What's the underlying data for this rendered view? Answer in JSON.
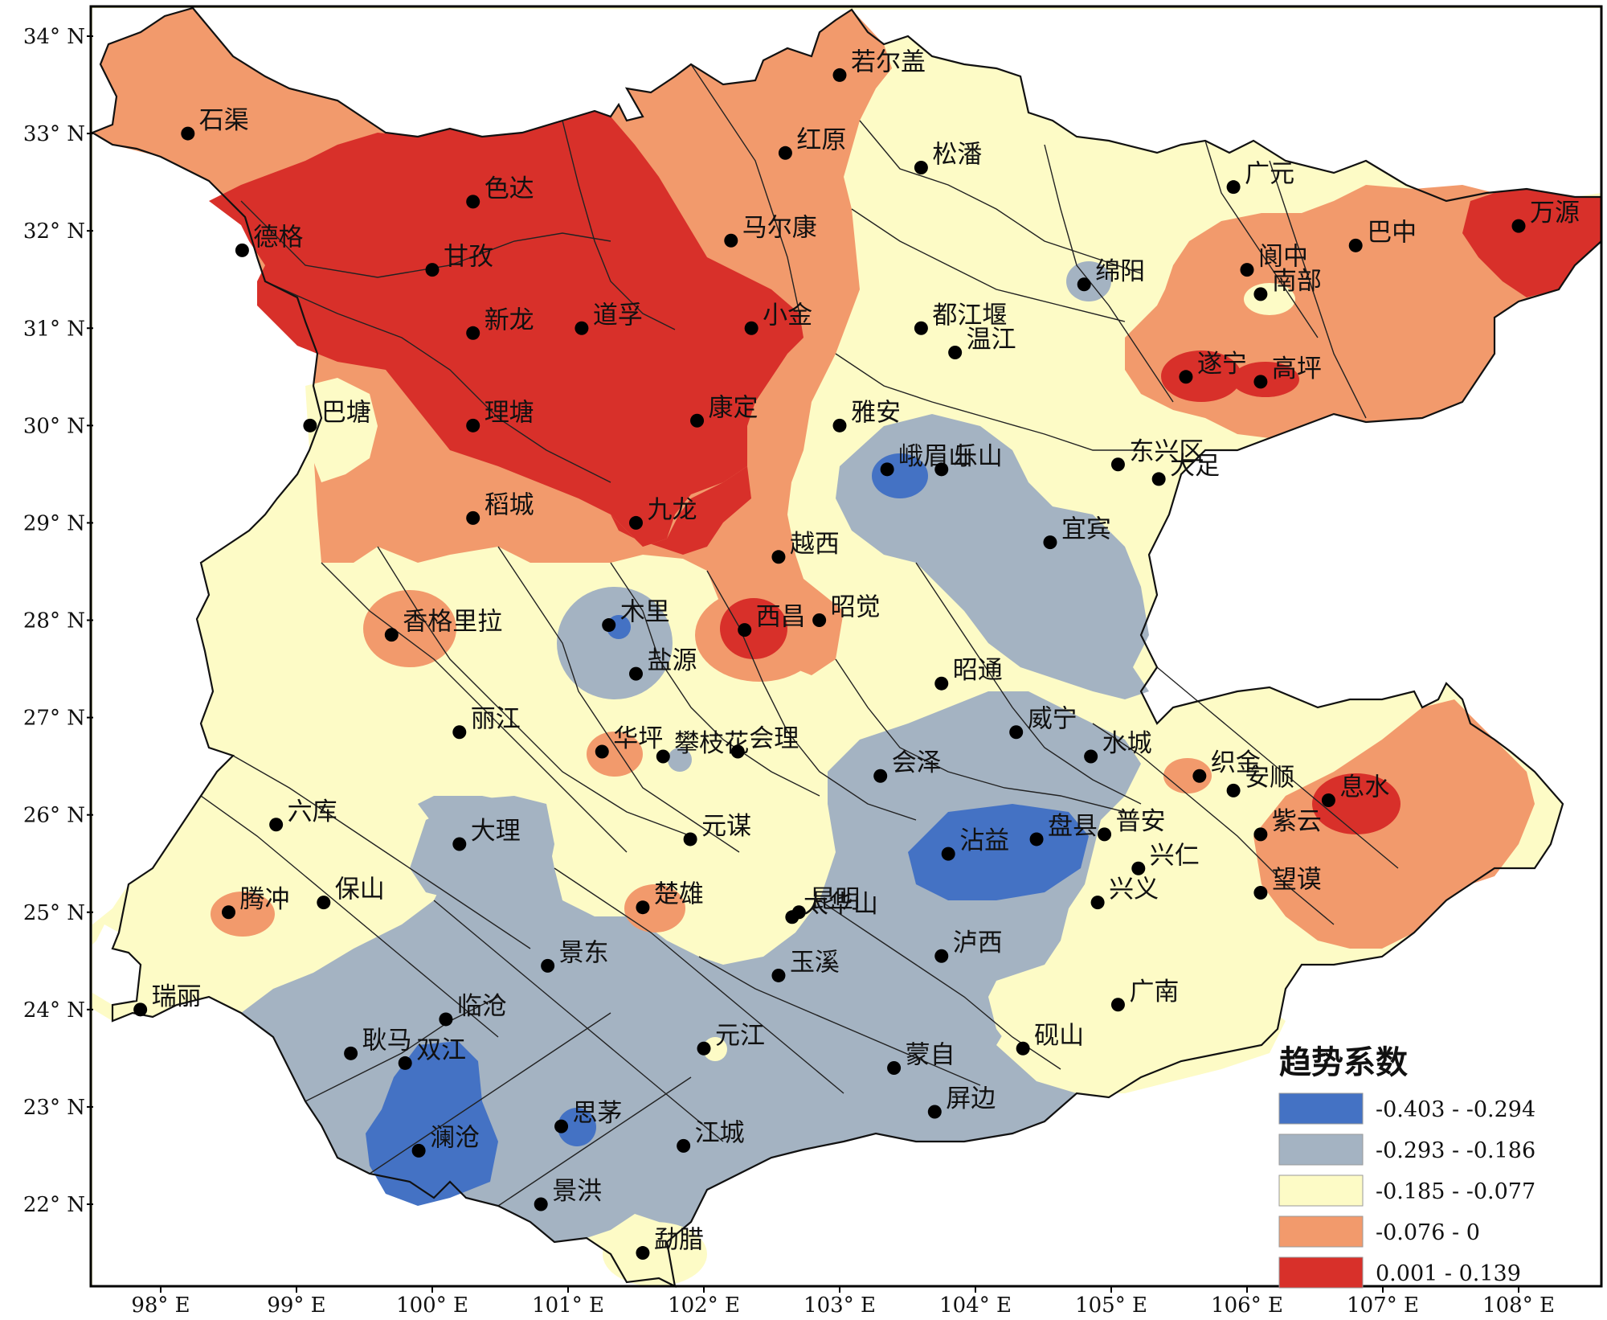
{
  "map": {
    "lat_ticks": [
      {
        "value": 34,
        "label": "34° N"
      },
      {
        "value": 33,
        "label": "33° N"
      },
      {
        "value": 32,
        "label": "32° N"
      },
      {
        "value": 31,
        "label": "31° N"
      },
      {
        "value": 30,
        "label": "30° N"
      },
      {
        "value": 29,
        "label": "29° N"
      },
      {
        "value": 28,
        "label": "28° N"
      },
      {
        "value": 27,
        "label": "27° N"
      },
      {
        "value": 26,
        "label": "26° N"
      },
      {
        "value": 25,
        "label": "25° N"
      },
      {
        "value": 24,
        "label": "24° N"
      },
      {
        "value": 23,
        "label": "23° N"
      },
      {
        "value": 22,
        "label": "22° N"
      }
    ],
    "lon_ticks": [
      {
        "value": 98,
        "label": "98° E"
      },
      {
        "value": 99,
        "label": "99° E"
      },
      {
        "value": 100,
        "label": "100° E"
      },
      {
        "value": 101,
        "label": "101° E"
      },
      {
        "value": 102,
        "label": "102° E"
      },
      {
        "value": 103,
        "label": "103° E"
      },
      {
        "value": 104,
        "label": "104° E"
      },
      {
        "value": 105,
        "label": "105° E"
      },
      {
        "value": 106,
        "label": "106° E"
      },
      {
        "value": 107,
        "label": "107° E"
      },
      {
        "value": 108,
        "label": "108° E"
      }
    ],
    "stations": [
      {
        "name": "若尔盖",
        "lon": 103.0,
        "lat": 33.6
      },
      {
        "name": "石渠",
        "lon": 98.2,
        "lat": 33.0
      },
      {
        "name": "红原",
        "lon": 102.6,
        "lat": 32.8
      },
      {
        "name": "松潘",
        "lon": 103.6,
        "lat": 32.65
      },
      {
        "name": "色达",
        "lon": 100.3,
        "lat": 32.3
      },
      {
        "name": "广元",
        "lon": 105.9,
        "lat": 32.45
      },
      {
        "name": "万源",
        "lon": 108.0,
        "lat": 32.05
      },
      {
        "name": "德格",
        "lon": 98.6,
        "lat": 31.8
      },
      {
        "name": "甘孜",
        "lon": 100.0,
        "lat": 31.6
      },
      {
        "name": "马尔康",
        "lon": 102.2,
        "lat": 31.9
      },
      {
        "name": "巴中",
        "lon": 106.8,
        "lat": 31.85
      },
      {
        "name": "绵阳",
        "lon": 104.8,
        "lat": 31.45
      },
      {
        "name": "阆中",
        "lon": 106.0,
        "lat": 31.6
      },
      {
        "name": "南部",
        "lon": 106.1,
        "lat": 31.35
      },
      {
        "name": "新龙",
        "lon": 100.3,
        "lat": 30.95
      },
      {
        "name": "道孚",
        "lon": 101.1,
        "lat": 31.0
      },
      {
        "name": "小金",
        "lon": 102.35,
        "lat": 31.0
      },
      {
        "name": "都江堰",
        "lon": 103.6,
        "lat": 31.0
      },
      {
        "name": "温江",
        "lon": 103.85,
        "lat": 30.75
      },
      {
        "name": "遂宁",
        "lon": 105.55,
        "lat": 30.5
      },
      {
        "name": "高坪",
        "lon": 106.1,
        "lat": 30.45
      },
      {
        "name": "巴塘",
        "lon": 99.1,
        "lat": 30.0
      },
      {
        "name": "理塘",
        "lon": 100.3,
        "lat": 30.0
      },
      {
        "name": "康定",
        "lon": 101.95,
        "lat": 30.05
      },
      {
        "name": "雅安",
        "lon": 103.0,
        "lat": 30.0
      },
      {
        "name": "峨眉山",
        "lon": 103.35,
        "lat": 29.55
      },
      {
        "name": "乐山",
        "lon": 103.75,
        "lat": 29.55
      },
      {
        "name": "东兴区",
        "lon": 105.05,
        "lat": 29.6
      },
      {
        "name": "大足",
        "lon": 105.35,
        "lat": 29.45
      },
      {
        "name": "稻城",
        "lon": 100.3,
        "lat": 29.05
      },
      {
        "name": "九龙",
        "lon": 101.5,
        "lat": 29.0
      },
      {
        "name": "越西",
        "lon": 102.55,
        "lat": 28.65
      },
      {
        "name": "宜宾",
        "lon": 104.55,
        "lat": 28.8
      },
      {
        "name": "木里",
        "lon": 101.3,
        "lat": 27.95
      },
      {
        "name": "西昌",
        "lon": 102.3,
        "lat": 27.9
      },
      {
        "name": "昭觉",
        "lon": 102.85,
        "lat": 28.0
      },
      {
        "name": "香格里拉",
        "lon": 99.7,
        "lat": 27.85
      },
      {
        "name": "盐源",
        "lon": 101.5,
        "lat": 27.45
      },
      {
        "name": "昭通",
        "lon": 103.75,
        "lat": 27.35
      },
      {
        "name": "丽江",
        "lon": 100.2,
        "lat": 26.85
      },
      {
        "name": "威宁",
        "lon": 104.3,
        "lat": 26.85
      },
      {
        "name": "华坪",
        "lon": 101.25,
        "lat": 26.65
      },
      {
        "name": "攀枝花",
        "lon": 101.7,
        "lat": 26.6
      },
      {
        "name": "会理",
        "lon": 102.25,
        "lat": 26.65
      },
      {
        "name": "水城",
        "lon": 104.85,
        "lat": 26.6
      },
      {
        "name": "织金",
        "lon": 105.65,
        "lat": 26.4
      },
      {
        "name": "安顺",
        "lon": 105.9,
        "lat": 26.25
      },
      {
        "name": "息水",
        "lon": 106.6,
        "lat": 26.15
      },
      {
        "name": "会泽",
        "lon": 103.3,
        "lat": 26.4
      },
      {
        "name": "六库",
        "lon": 98.85,
        "lat": 25.9
      },
      {
        "name": "大理",
        "lon": 100.2,
        "lat": 25.7
      },
      {
        "name": "元谋",
        "lon": 101.9,
        "lat": 25.75
      },
      {
        "name": "沾益",
        "lon": 103.8,
        "lat": 25.6
      },
      {
        "name": "盘县",
        "lon": 104.45,
        "lat": 25.75
      },
      {
        "name": "普安",
        "lon": 104.95,
        "lat": 25.8
      },
      {
        "name": "兴仁",
        "lon": 105.2,
        "lat": 25.45
      },
      {
        "name": "紫云",
        "lon": 106.1,
        "lat": 25.8
      },
      {
        "name": "望谟",
        "lon": 106.1,
        "lat": 25.2
      },
      {
        "name": "兴义",
        "lon": 104.9,
        "lat": 25.1
      },
      {
        "name": "腾冲",
        "lon": 98.5,
        "lat": 25.0
      },
      {
        "name": "保山",
        "lon": 99.2,
        "lat": 25.1
      },
      {
        "name": "楚雄",
        "lon": 101.55,
        "lat": 25.05
      },
      {
        "name": "昆明",
        "lon": 102.7,
        "lat": 25.0
      },
      {
        "name": "太华山",
        "lon": 102.65,
        "lat": 24.95
      },
      {
        "name": "景东",
        "lon": 100.85,
        "lat": 24.45
      },
      {
        "name": "玉溪",
        "lon": 102.55,
        "lat": 24.35
      },
      {
        "name": "泸西",
        "lon": 103.75,
        "lat": 24.55
      },
      {
        "name": "瑞丽",
        "lon": 97.85,
        "lat": 24.0
      },
      {
        "name": "广南",
        "lon": 105.05,
        "lat": 24.05
      },
      {
        "name": "临沧",
        "lon": 100.1,
        "lat": 23.9
      },
      {
        "name": "耿马",
        "lon": 99.4,
        "lat": 23.55
      },
      {
        "name": "双江",
        "lon": 99.8,
        "lat": 23.45
      },
      {
        "name": "元江",
        "lon": 102.0,
        "lat": 23.6
      },
      {
        "name": "砚山",
        "lon": 104.35,
        "lat": 23.6
      },
      {
        "name": "蒙自",
        "lon": 103.4,
        "lat": 23.4
      },
      {
        "name": "屏边",
        "lon": 103.7,
        "lat": 22.95
      },
      {
        "name": "思茅",
        "lon": 100.95,
        "lat": 22.8
      },
      {
        "name": "澜沧",
        "lon": 99.9,
        "lat": 22.55
      },
      {
        "name": "江城",
        "lon": 101.85,
        "lat": 22.6
      },
      {
        "name": "景洪",
        "lon": 100.8,
        "lat": 22.0
      },
      {
        "name": "勐腊",
        "lon": 101.55,
        "lat": 21.5
      }
    ]
  },
  "legend": {
    "title": "趋势系数",
    "items": [
      {
        "label": "-0.403 - -0.294",
        "color": "#4472c4"
      },
      {
        "label": "-0.293 - -0.186",
        "color": "#a4b3c2"
      },
      {
        "label": "-0.185 - -0.077",
        "color": "#fdfbc6"
      },
      {
        "label": "-0.076 - 0",
        "color": "#f29a6c"
      },
      {
        "label": "0.001 - 0.139",
        "color": "#d8302a"
      }
    ]
  }
}
